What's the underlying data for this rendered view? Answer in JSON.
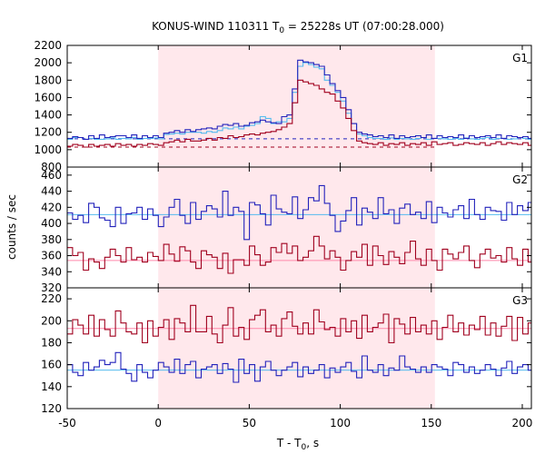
{
  "chart_data": {
    "type": "line",
    "title": "KONUS-WIND 110311 T",
    "title_sub": "0",
    "title_rest": " = 25228s UT (07:00:28.000)",
    "xlabel": "T - T",
    "xlabel_sub": "0",
    "xlabel_rest": ", s",
    "ylabel": "counts / sec",
    "xlim": [
      -50,
      205
    ],
    "x_ticks": [
      -50,
      0,
      50,
      100,
      150,
      200
    ],
    "highlight_interval": [
      0,
      152
    ],
    "colors": {
      "dark_blue": "#2222bb",
      "dark_red": "#a0001e",
      "light_blue": "#55bbee",
      "pink_line": "#ff88aa",
      "shade": "#ffe8ec"
    },
    "panels": [
      {
        "name": "G1",
        "ylim": [
          800,
          2200
        ],
        "y_ticks": [
          800,
          1000,
          1200,
          1400,
          1600,
          1800,
          2000,
          2200
        ],
        "background_levels": [
          {
            "series": "red",
            "value": 1030,
            "dashed": true,
            "from": -50,
            "to": 152
          },
          {
            "series": "blue",
            "value": 1125,
            "dashed": true,
            "from": -50,
            "to": 205
          }
        ],
        "series": [
          {
            "color": "light_blue",
            "step": 2.944,
            "x_start": -50,
            "values": [
              1120,
              1140,
              1140,
              1120,
              1130,
              1120,
              1120,
              1125,
              1135,
              1120,
              1130,
              1125,
              1140,
              1120,
              1130,
              1130,
              1135,
              1125,
              1175,
              1180,
              1190,
              1180,
              1200,
              1200,
              1200,
              1190,
              1210,
              1200,
              1220,
              1250,
              1240,
              1260,
              1240,
              1270,
              1280,
              1300,
              1380,
              1360,
              1300,
              1320,
              1320,
              1360,
              1660,
              1960,
              2000,
              1980,
              1950,
              1930,
              1800,
              1740,
              1660,
              1560,
              1420,
              1300,
              1180,
              1160,
              1140,
              1130,
              1130,
              1120,
              1135,
              1120,
              1130,
              1125,
              1120,
              1130,
              1140,
              1120,
              1130,
              1130,
              1125,
              1120,
              1130,
              1120,
              1135,
              1125,
              1120,
              1130,
              1140,
              1120,
              1130,
              1130,
              1120,
              1125,
              1140,
              1130,
              1120
            ]
          },
          {
            "color": "dark_blue",
            "step": 2.944,
            "x_start": -50,
            "values": [
              1130,
              1150,
              1140,
              1120,
              1160,
              1130,
              1170,
              1140,
              1150,
              1160,
              1160,
              1140,
              1170,
              1130,
              1160,
              1140,
              1160,
              1140,
              1190,
              1200,
              1220,
              1200,
              1230,
              1210,
              1230,
              1240,
              1250,
              1240,
              1270,
              1290,
              1280,
              1300,
              1270,
              1280,
              1310,
              1320,
              1340,
              1320,
              1310,
              1300,
              1380,
              1400,
              1700,
              2030,
              2010,
              2000,
              1980,
              1960,
              1860,
              1760,
              1680,
              1600,
              1460,
              1300,
              1200,
              1180,
              1170,
              1150,
              1160,
              1140,
              1170,
              1130,
              1160,
              1140,
              1150,
              1160,
              1140,
              1170,
              1130,
              1160,
              1140,
              1150,
              1140,
              1170,
              1130,
              1160,
              1140,
              1150,
              1160,
              1140,
              1170,
              1130,
              1160,
              1150,
              1140,
              1150,
              1130
            ]
          },
          {
            "color": "dark_red",
            "step": 2.944,
            "x_start": -50,
            "values": [
              1040,
              1060,
              1050,
              1030,
              1060,
              1040,
              1050,
              1060,
              1040,
              1070,
              1050,
              1060,
              1040,
              1060,
              1050,
              1070,
              1060,
              1050,
              1080,
              1090,
              1110,
              1090,
              1120,
              1100,
              1100,
              1110,
              1130,
              1110,
              1140,
              1130,
              1160,
              1140,
              1150,
              1170,
              1180,
              1170,
              1190,
              1200,
              1210,
              1230,
              1260,
              1300,
              1540,
              1800,
              1780,
              1760,
              1740,
              1700,
              1660,
              1640,
              1560,
              1480,
              1360,
              1220,
              1100,
              1080,
              1070,
              1060,
              1080,
              1050,
              1070,
              1060,
              1080,
              1050,
              1070,
              1060,
              1080,
              1050,
              1090,
              1060,
              1070,
              1080,
              1050,
              1060,
              1080,
              1070,
              1060,
              1080,
              1050,
              1070,
              1090,
              1060,
              1080,
              1070,
              1060,
              1080,
              1050
            ]
          }
        ]
      },
      {
        "name": "G2",
        "ylim": [
          320,
          470
        ],
        "y_ticks": [
          320,
          340,
          360,
          380,
          400,
          420,
          440,
          460
        ],
        "background_levels": [
          {
            "series": "blue",
            "value": 411,
            "dashed": false,
            "from": -50,
            "to": 205
          },
          {
            "series": "red",
            "value": 354,
            "dashed": false,
            "from": -50,
            "to": 205
          }
        ],
        "series": [
          {
            "color": "dark_blue",
            "step": 2.944,
            "x_start": -50,
            "values": [
              413,
              405,
              410,
              401,
              425,
              420,
              407,
              404,
              396,
              420,
              400,
              412,
              413,
              420,
              405,
              418,
              410,
              396,
              408,
              420,
              430,
              410,
              400,
              426,
              405,
              415,
              422,
              418,
              408,
              440,
              410,
              420,
              415,
              380,
              426,
              423,
              412,
              398,
              435,
              418,
              414,
              412,
              433,
              406,
              417,
              432,
              428,
              447,
              425,
              410,
              390,
              403,
              416,
              432,
              398,
              419,
              414,
              406,
              432,
              412,
              417,
              400,
              419,
              424,
              411,
              414,
              406,
              427,
              401,
              420,
              413,
              408,
              417,
              422,
              406,
              430,
              411,
              405,
              420,
              416,
              415,
              404,
              426,
              411,
              422,
              416,
              426
            ]
          },
          {
            "color": "dark_red",
            "step": 2.944,
            "x_start": -50,
            "values": [
              370,
              360,
              364,
              342,
              356,
              352,
              344,
              358,
              368,
              360,
              352,
              370,
              355,
              358,
              352,
              364,
              359,
              354,
              374,
              362,
              353,
              371,
              366,
              352,
              344,
              366,
              361,
              358,
              344,
              363,
              338,
              355,
              355,
              348,
              372,
              361,
              348,
              352,
              370,
              364,
              375,
              363,
              372,
              354,
              358,
              366,
              384,
              372,
              356,
              366,
              358,
              342,
              354,
              365,
              358,
              374,
              348,
              372,
              360,
              349,
              365,
              358,
              350,
              364,
              378,
              356,
              348,
              368,
              354,
              342,
              368,
              362,
              356,
              364,
              372,
              354,
              345,
              362,
              368,
              357,
              360,
              352,
              370,
              356,
              348,
              368,
              352
            ]
          }
        ]
      },
      {
        "name": "G3",
        "ylim": [
          120,
          230
        ],
        "y_ticks": [
          120,
          140,
          160,
          180,
          200,
          220
        ],
        "background_levels": [
          {
            "series": "red",
            "value": 193,
            "dashed": false,
            "from": -50,
            "to": 205
          },
          {
            "series": "blue",
            "value": 155,
            "dashed": false,
            "from": -50,
            "to": 205
          }
        ],
        "series": [
          {
            "color": "dark_red",
            "step": 2.944,
            "x_start": -50,
            "values": [
              188,
              201,
              196,
              188,
              205,
              186,
              201,
              192,
              186,
              209,
              198,
              190,
              188,
              198,
              180,
              200,
              186,
              194,
              201,
              183,
              202,
              198,
              190,
              214,
              190,
              190,
              204,
              188,
              180,
              196,
              212,
              186,
              194,
              183,
              201,
              205,
              210,
              190,
              196,
              186,
              202,
              208,
              195,
              188,
              198,
              188,
              210,
              199,
              192,
              194,
              186,
              202,
              190,
              200,
              184,
              205,
              190,
              194,
              198,
              206,
              180,
              202,
              197,
              188,
              203,
              190,
              196,
              188,
              200,
              183,
              194,
              205,
              190,
              198,
              187,
              196,
              192,
              204,
              187,
              198,
              186,
              195,
              204,
              182,
              203,
              188,
              198
            ]
          },
          {
            "color": "dark_blue",
            "step": 2.944,
            "x_start": -50,
            "values": [
              160,
              153,
              150,
              162,
              155,
              158,
              164,
              160,
              162,
              171,
              156,
              152,
              145,
              160,
              153,
              148,
              155,
              162,
              158,
              153,
              165,
              152,
              160,
              163,
              148,
              156,
              158,
              160,
              152,
              161,
              156,
              144,
              165,
              152,
              160,
              145,
              158,
              163,
              155,
              150,
              155,
              158,
              162,
              149,
              158,
              152,
              155,
              160,
              148,
              157,
              153,
              158,
              162,
              154,
              148,
              168,
              155,
              153,
              160,
              150,
              157,
              155,
              168,
              158,
              156,
              153,
              158,
              153,
              160,
              158,
              156,
              150,
              162,
              160,
              153,
              158,
              152,
              155,
              160,
              156,
              150,
              157,
              163,
              152,
              158,
              160,
              155
            ]
          }
        ]
      }
    ]
  }
}
